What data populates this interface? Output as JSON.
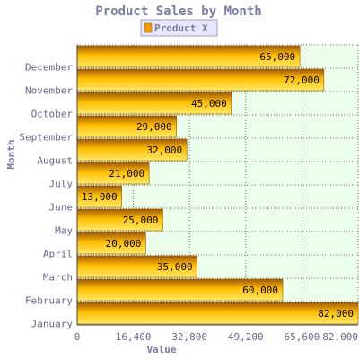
{
  "chart_data": {
    "type": "bar",
    "orientation": "horizontal",
    "title": "Product Sales by Month",
    "xlabel": "Value",
    "ylabel": "Month",
    "categories": [
      "January",
      "February",
      "March",
      "April",
      "May",
      "June",
      "July",
      "August",
      "September",
      "October",
      "November",
      "December"
    ],
    "series": [
      {
        "name": "Product X",
        "values": [
          82000,
          60000,
          35000,
          20000,
          25000,
          13000,
          21000,
          32000,
          29000,
          45000,
          72000,
          65000
        ],
        "data_labels": [
          "82,000",
          "60,000",
          "35,000",
          "20,000",
          "25,000",
          "13,000",
          "21,000",
          "32,000",
          "29,000",
          "45,000",
          "72,000",
          "65,000"
        ]
      }
    ],
    "xlim": [
      0,
      82000
    ],
    "x_ticks": [
      0,
      16400,
      32800,
      49200,
      65600,
      82000
    ],
    "x_tick_labels": [
      "0",
      "16,400",
      "32,800",
      "49,200",
      "65,600",
      "82,000"
    ],
    "grid": true,
    "legend_position": "top-center",
    "colors": {
      "title": "#7b7ba6",
      "axis_label": "#7b7ba6",
      "tick_label": "#66668a",
      "plot_background": "#ecffec",
      "bar_dark": "#a0580a",
      "bar_mid": "#ffbe00",
      "bar_light": "#ffe96a",
      "bar_stroke": "#a05a00",
      "grid": "#5b7a5b",
      "legend_border": "#9ba0d0",
      "legend_background": "#e6e8f8"
    }
  }
}
